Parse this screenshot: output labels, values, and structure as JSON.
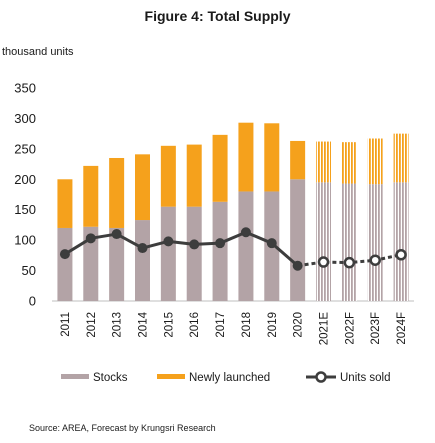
{
  "chart_data": {
    "type": "bar",
    "title": "Figure 4: Total Supply",
    "ylabel": "thousand units",
    "categories": [
      "2011",
      "2012",
      "2013",
      "2014",
      "2015",
      "2016",
      "2017",
      "2018",
      "2019",
      "2020",
      "2021E",
      "2022F",
      "2023F",
      "2024F"
    ],
    "ylim": [
      0,
      350
    ],
    "yticks": [
      0,
      50,
      100,
      150,
      200,
      250,
      300,
      350
    ],
    "stacked": true,
    "series": [
      {
        "name": "Stocks",
        "kind": "bar",
        "color": "#b3a3a6",
        "values": [
          120,
          122,
          120,
          133,
          155,
          155,
          163,
          180,
          180,
          200,
          195,
          193,
          192,
          195
        ]
      },
      {
        "name": "Newly launched",
        "kind": "bar",
        "color": "#f5a11c",
        "values": [
          80,
          100,
          115,
          108,
          100,
          102,
          110,
          113,
          112,
          63,
          67,
          68,
          75,
          80
        ]
      },
      {
        "name": "Units sold",
        "kind": "line",
        "color": "#3d3d3d",
        "values": [
          77,
          103,
          110,
          87,
          98,
          93,
          95,
          113,
          95,
          58,
          64,
          63,
          67,
          76
        ]
      }
    ],
    "forecast_from": "2021E",
    "grid": false,
    "legend_position": "bottom"
  },
  "source": "Source: AREA, Forecast by Krungsri Research"
}
